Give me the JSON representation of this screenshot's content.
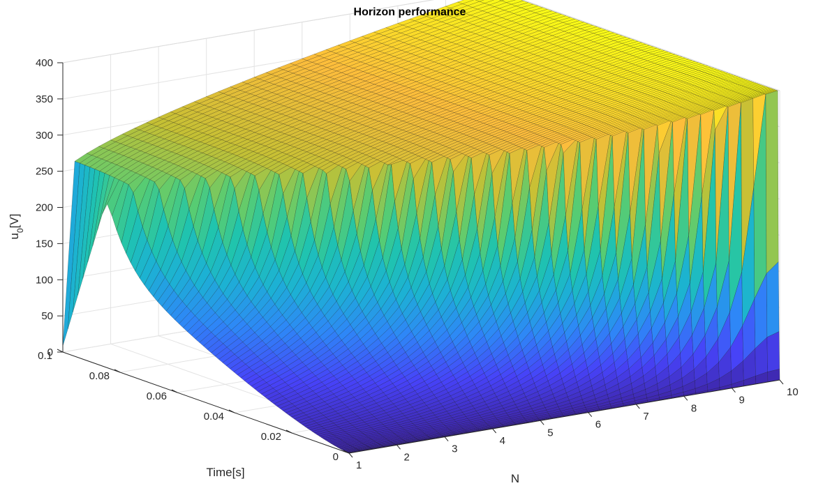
{
  "chart_data": {
    "type": "surface",
    "title": "Horizon performance",
    "xlabel": "N",
    "ylabel": "Time[s]",
    "zlabel_base": "u",
    "zlabel_sub": "0",
    "zlabel_unit": "[V]",
    "x_ticks": [
      "1",
      "2",
      "3",
      "4",
      "5",
      "6",
      "7",
      "8",
      "9",
      "10"
    ],
    "y_ticks": [
      "0",
      "0.02",
      "0.04",
      "0.06",
      "0.08",
      "0.1"
    ],
    "z_ticks": [
      "0",
      "50",
      "100",
      "150",
      "200",
      "250",
      "300",
      "350",
      "400"
    ],
    "xlim": [
      1,
      10
    ],
    "ylim": [
      0,
      0.1
    ],
    "zlim": [
      0,
      400
    ],
    "grid": true,
    "colormap": "parula",
    "colormap_stops": [
      "#3e26a8",
      "#4743f8",
      "#2e87f7",
      "#1cb2d3",
      "#20c4ad",
      "#58cc72",
      "#c5c034",
      "#fdbd3c",
      "#f9fb15"
    ],
    "edge_color": "#000000",
    "surface_model": {
      "description_none": "",
      "final_value_at_N1": 250,
      "final_value_at_N10": 400,
      "rise_time_at_N1": 0.085,
      "rise_time_at_N10": 0.0002
    }
  }
}
